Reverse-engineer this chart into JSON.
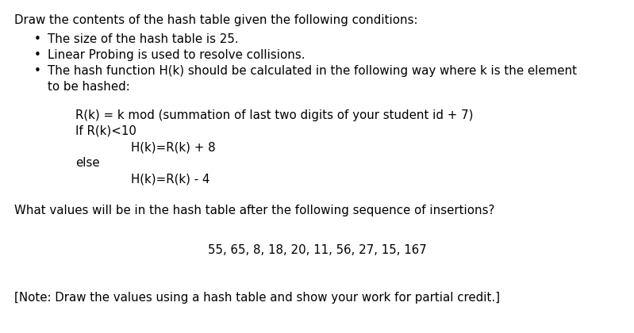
{
  "bg_color": "#ffffff",
  "title_line": "Draw the contents of the hash table given the following conditions:",
  "bullet1": "The size of the hash table is 25.",
  "bullet2": "Linear Probing is used to resolve collisions.",
  "bullet3a": "The hash function H(k) should be calculated in the following way where k is the element",
  "bullet3b": "to be hashed:",
  "formula1": "R(k) = k mod (summation of last two digits of your student id + 7)",
  "formula2": "If R(k)<10",
  "formula3": "H(k)=R(k) + 8",
  "formula4": "else",
  "formula5": "H(k)=R(k) - 4",
  "question": "What values will be in the hash table after the following sequence of insertions?",
  "sequence": "55, 65, 8, 18, 20, 11, 56, 27, 15, 167",
  "note": "[Note: Draw the values using a hash table and show your work for partial credit.]",
  "font_size": 10.8,
  "bullet_char": "•",
  "text_color": "#000000"
}
